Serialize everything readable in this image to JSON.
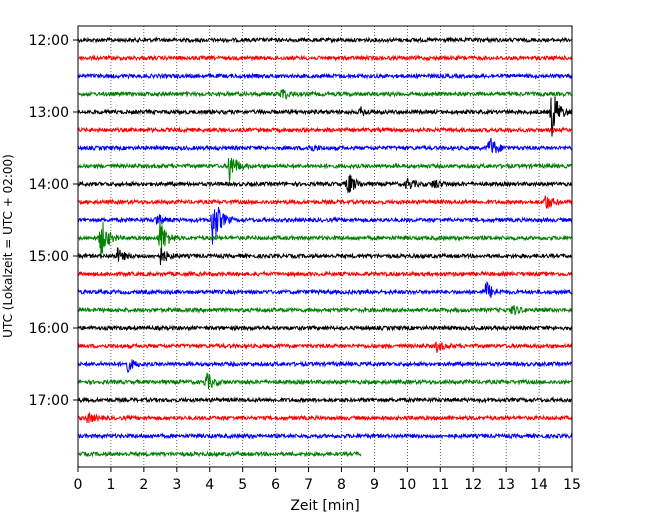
{
  "chart_data": {
    "type": "line",
    "title": "",
    "xlabel": "Zeit  [min]",
    "ylabel": "UTC (Lokalzeit = UTC + 02:00)",
    "xlim": [
      0,
      15
    ],
    "x_ticks": [
      "0",
      "1",
      "2",
      "3",
      "4",
      "5",
      "6",
      "7",
      "8",
      "9",
      "10",
      "11",
      "12",
      "13",
      "14",
      "15"
    ],
    "y_ticks": [
      "12:00",
      "13:00",
      "14:00",
      "15:00",
      "16:00",
      "17:00"
    ],
    "grid": "vertical dotted lines at each minute",
    "legend": "none",
    "trace_interval_min": 15,
    "color_cycle": [
      "#000000",
      "#ff0000",
      "#0000ff",
      "#008000"
    ],
    "series": [
      {
        "start": "12:00",
        "end_min": 15,
        "events": []
      },
      {
        "start": "12:15",
        "end_min": 15,
        "events": []
      },
      {
        "start": "12:30",
        "end_min": 15,
        "events": []
      },
      {
        "start": "12:45",
        "end_min": 15,
        "events": [
          {
            "t": 6.2,
            "amp": 6
          }
        ]
      },
      {
        "start": "13:00",
        "end_min": 15,
        "events": [
          {
            "t": 8.6,
            "amp": 4
          },
          {
            "t": 14.4,
            "amp": 25
          }
        ]
      },
      {
        "start": "13:15",
        "end_min": 15,
        "events": []
      },
      {
        "start": "13:30",
        "end_min": 15,
        "events": [
          {
            "t": 7.0,
            "amp": 4
          },
          {
            "t": 12.5,
            "amp": 12
          }
        ]
      },
      {
        "start": "13:45",
        "end_min": 15,
        "events": [
          {
            "t": 4.6,
            "amp": 16
          }
        ]
      },
      {
        "start": "14:00",
        "end_min": 15,
        "events": [
          {
            "t": 8.2,
            "amp": 12
          },
          {
            "t": 10.0,
            "amp": 6
          },
          {
            "t": 10.8,
            "amp": 5
          }
        ]
      },
      {
        "start": "14:15",
        "end_min": 15,
        "events": [
          {
            "t": 14.2,
            "amp": 8
          }
        ]
      },
      {
        "start": "14:30",
        "end_min": 15,
        "events": [
          {
            "t": 4.1,
            "amp": 28
          },
          {
            "t": 2.4,
            "amp": 6
          }
        ]
      },
      {
        "start": "14:45",
        "end_min": 15,
        "events": [
          {
            "t": 0.7,
            "amp": 20
          },
          {
            "t": 2.5,
            "amp": 18
          }
        ]
      },
      {
        "start": "15:00",
        "end_min": 15,
        "events": [
          {
            "t": 1.2,
            "amp": 7
          },
          {
            "t": 2.5,
            "amp": 9
          }
        ]
      },
      {
        "start": "15:15",
        "end_min": 15,
        "events": []
      },
      {
        "start": "15:30",
        "end_min": 15,
        "events": [
          {
            "t": 12.4,
            "amp": 10
          }
        ]
      },
      {
        "start": "15:45",
        "end_min": 15,
        "events": [
          {
            "t": 13.2,
            "amp": 5
          }
        ]
      },
      {
        "start": "16:00",
        "end_min": 15,
        "events": []
      },
      {
        "start": "16:15",
        "end_min": 15,
        "events": [
          {
            "t": 10.9,
            "amp": 5
          }
        ]
      },
      {
        "start": "16:30",
        "end_min": 15,
        "events": [
          {
            "t": 1.5,
            "amp": 7
          }
        ]
      },
      {
        "start": "16:45",
        "end_min": 15,
        "events": [
          {
            "t": 3.9,
            "amp": 9
          }
        ]
      },
      {
        "start": "17:00",
        "end_min": 15,
        "events": []
      },
      {
        "start": "17:15",
        "end_min": 15,
        "events": [
          {
            "t": 0.3,
            "amp": 5
          }
        ]
      },
      {
        "start": "17:30",
        "end_min": 15,
        "events": []
      },
      {
        "start": "17:45",
        "end_min": 8.6,
        "events": []
      }
    ]
  }
}
